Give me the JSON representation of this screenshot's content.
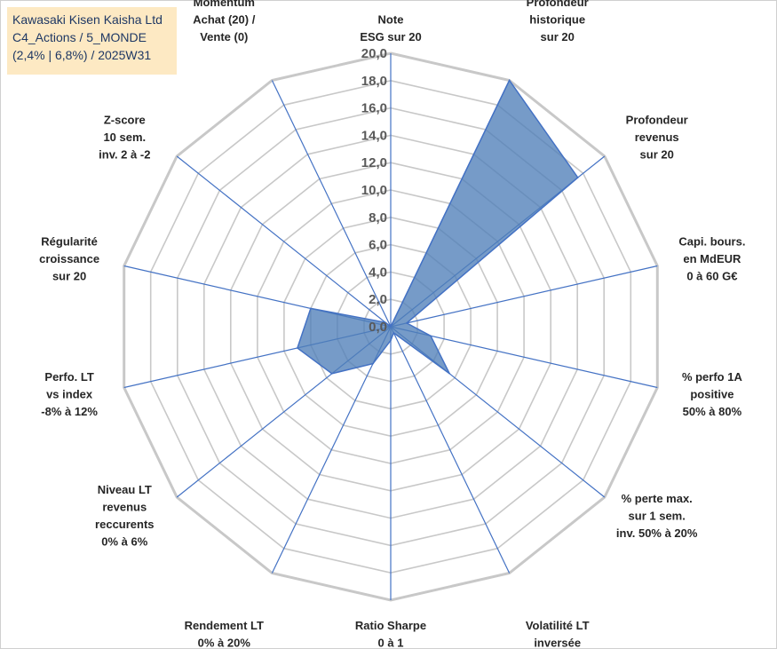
{
  "info_box": {
    "line1": "Kawasaki Kisen Kaisha Ltd",
    "line2": "C4_Actions / 5_MONDE",
    "line3": "(2,4% | 6,8%) / 2025W31"
  },
  "colors": {
    "fill": "#4f7fb8",
    "stroke": "#4472c4",
    "grid": "#c8c8c8",
    "spoke": "#4472c4",
    "info_bg": "#fde9c3",
    "info_text": "#1f3864"
  },
  "chart_data": {
    "type": "radar",
    "title": "",
    "rmin": 0,
    "rmax": 20,
    "ticks": [
      "0,0",
      "2,0",
      "4,0",
      "6,0",
      "8,0",
      "10,0",
      "12,0",
      "14,0",
      "16,0",
      "18,0",
      "20,0"
    ],
    "grid": true,
    "categories": [
      [
        "Note",
        "ESG sur 20"
      ],
      [
        "Profondeur",
        "historique",
        "sur 20"
      ],
      [
        "Profondeur",
        "revenus",
        "sur 20"
      ],
      [
        "Capi. bours.",
        "en MdEUR",
        "0 à 60 G€"
      ],
      [
        "% perfo 1A",
        "positive",
        "50% à 80%"
      ],
      [
        "% perte max.",
        "sur 1 sem.",
        "inv. 50% à 20%"
      ],
      [
        "Volatilité LT",
        "inversée",
        "40% à 0%"
      ],
      [
        "Ratio Sharpe",
        "0 à 1"
      ],
      [
        "Rendement LT",
        "0% à 20%"
      ],
      [
        "Niveau LT",
        "revenus",
        "reccurents",
        "0% à 6%"
      ],
      [
        "Perfo. LT",
        "vs index",
        "-8% à 12%"
      ],
      [
        "Régularité",
        "croissance",
        "sur 20"
      ],
      [
        "Z-score",
        "10 sem.",
        "inv. 2 à -2"
      ],
      [
        "Momentum",
        "Achat (20) /",
        "Vente (0)"
      ]
    ],
    "series": [
      {
        "values": [
          0,
          20,
          17.5,
          1.2,
          3.0,
          5.5,
          0.5,
          1.0,
          3.0,
          5.5,
          7.0,
          6.0,
          0.5,
          0
        ]
      }
    ]
  }
}
